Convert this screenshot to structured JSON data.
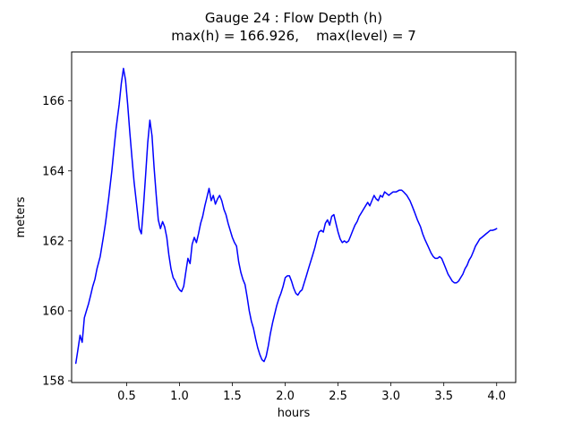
{
  "chart_data": {
    "type": "line",
    "title": "Gauge 24 : Flow Depth (h)",
    "subtitle": "max(h) = 166.926,    max(level) = 7",
    "max_h": 166.926,
    "max_level": 7,
    "xlabel": "hours",
    "ylabel": "meters",
    "xlim": [
      -0.02,
      4.18
    ],
    "ylim": [
      157.95,
      167.4
    ],
    "xticks": [
      0.5,
      1.0,
      1.5,
      2.0,
      2.5,
      3.0,
      3.5,
      4.0
    ],
    "xtick_labels": [
      "0.5",
      "1.0",
      "1.5",
      "2.0",
      "2.5",
      "3.0",
      "3.5",
      "4.0"
    ],
    "yticks": [
      158,
      160,
      162,
      164,
      166
    ],
    "ytick_labels": [
      "158",
      "160",
      "162",
      "164",
      "166"
    ],
    "grid": false,
    "legend": "none",
    "line_color": "#0000ff",
    "line_width": 1.5,
    "points": [
      [
        0.02,
        158.5
      ],
      [
        0.04,
        158.9
      ],
      [
        0.06,
        159.3
      ],
      [
        0.08,
        159.1
      ],
      [
        0.1,
        159.8
      ],
      [
        0.12,
        160.0
      ],
      [
        0.14,
        160.2
      ],
      [
        0.16,
        160.45
      ],
      [
        0.18,
        160.7
      ],
      [
        0.2,
        160.9
      ],
      [
        0.22,
        161.2
      ],
      [
        0.25,
        161.55
      ],
      [
        0.28,
        162.1
      ],
      [
        0.3,
        162.5
      ],
      [
        0.33,
        163.2
      ],
      [
        0.36,
        164.0
      ],
      [
        0.38,
        164.6
      ],
      [
        0.4,
        165.2
      ],
      [
        0.43,
        165.9
      ],
      [
        0.45,
        166.5
      ],
      [
        0.47,
        166.93
      ],
      [
        0.49,
        166.6
      ],
      [
        0.51,
        165.9
      ],
      [
        0.53,
        165.1
      ],
      [
        0.55,
        164.4
      ],
      [
        0.57,
        163.7
      ],
      [
        0.6,
        162.9
      ],
      [
        0.62,
        162.35
      ],
      [
        0.64,
        162.2
      ],
      [
        0.66,
        163.0
      ],
      [
        0.68,
        163.9
      ],
      [
        0.7,
        164.8
      ],
      [
        0.72,
        165.45
      ],
      [
        0.74,
        165.0
      ],
      [
        0.76,
        164.1
      ],
      [
        0.78,
        163.3
      ],
      [
        0.8,
        162.6
      ],
      [
        0.82,
        162.35
      ],
      [
        0.84,
        162.55
      ],
      [
        0.86,
        162.4
      ],
      [
        0.88,
        162.1
      ],
      [
        0.9,
        161.6
      ],
      [
        0.92,
        161.2
      ],
      [
        0.94,
        160.95
      ],
      [
        0.96,
        160.85
      ],
      [
        0.98,
        160.7
      ],
      [
        1.0,
        160.6
      ],
      [
        1.02,
        160.55
      ],
      [
        1.04,
        160.7
      ],
      [
        1.06,
        161.1
      ],
      [
        1.08,
        161.5
      ],
      [
        1.1,
        161.35
      ],
      [
        1.12,
        161.9
      ],
      [
        1.14,
        162.1
      ],
      [
        1.16,
        161.95
      ],
      [
        1.18,
        162.2
      ],
      [
        1.2,
        162.5
      ],
      [
        1.22,
        162.7
      ],
      [
        1.24,
        163.0
      ],
      [
        1.26,
        163.25
      ],
      [
        1.28,
        163.5
      ],
      [
        1.3,
        163.15
      ],
      [
        1.32,
        163.3
      ],
      [
        1.34,
        163.05
      ],
      [
        1.36,
        163.2
      ],
      [
        1.38,
        163.3
      ],
      [
        1.4,
        163.15
      ],
      [
        1.42,
        162.9
      ],
      [
        1.44,
        162.75
      ],
      [
        1.46,
        162.5
      ],
      [
        1.48,
        162.3
      ],
      [
        1.5,
        162.1
      ],
      [
        1.52,
        161.95
      ],
      [
        1.54,
        161.85
      ],
      [
        1.56,
        161.4
      ],
      [
        1.58,
        161.1
      ],
      [
        1.6,
        160.9
      ],
      [
        1.62,
        160.75
      ],
      [
        1.64,
        160.4
      ],
      [
        1.66,
        160.0
      ],
      [
        1.68,
        159.7
      ],
      [
        1.7,
        159.5
      ],
      [
        1.72,
        159.2
      ],
      [
        1.74,
        158.95
      ],
      [
        1.76,
        158.75
      ],
      [
        1.78,
        158.6
      ],
      [
        1.8,
        158.55
      ],
      [
        1.82,
        158.7
      ],
      [
        1.84,
        159.0
      ],
      [
        1.86,
        159.35
      ],
      [
        1.88,
        159.65
      ],
      [
        1.9,
        159.9
      ],
      [
        1.92,
        160.15
      ],
      [
        1.94,
        160.35
      ],
      [
        1.96,
        160.5
      ],
      [
        1.98,
        160.7
      ],
      [
        2.0,
        160.95
      ],
      [
        2.02,
        161.0
      ],
      [
        2.04,
        161.0
      ],
      [
        2.06,
        160.85
      ],
      [
        2.08,
        160.65
      ],
      [
        2.1,
        160.5
      ],
      [
        2.12,
        160.45
      ],
      [
        2.14,
        160.55
      ],
      [
        2.16,
        160.6
      ],
      [
        2.18,
        160.8
      ],
      [
        2.2,
        161.0
      ],
      [
        2.22,
        161.2
      ],
      [
        2.24,
        161.4
      ],
      [
        2.26,
        161.6
      ],
      [
        2.28,
        161.8
      ],
      [
        2.3,
        162.05
      ],
      [
        2.32,
        162.25
      ],
      [
        2.34,
        162.3
      ],
      [
        2.36,
        162.25
      ],
      [
        2.38,
        162.5
      ],
      [
        2.4,
        162.6
      ],
      [
        2.42,
        162.45
      ],
      [
        2.44,
        162.7
      ],
      [
        2.46,
        162.75
      ],
      [
        2.48,
        162.5
      ],
      [
        2.5,
        162.25
      ],
      [
        2.52,
        162.05
      ],
      [
        2.54,
        161.95
      ],
      [
        2.56,
        162.0
      ],
      [
        2.58,
        161.95
      ],
      [
        2.6,
        162.0
      ],
      [
        2.62,
        162.15
      ],
      [
        2.64,
        162.3
      ],
      [
        2.66,
        162.45
      ],
      [
        2.68,
        162.55
      ],
      [
        2.7,
        162.7
      ],
      [
        2.72,
        162.8
      ],
      [
        2.74,
        162.9
      ],
      [
        2.76,
        163.0
      ],
      [
        2.78,
        163.1
      ],
      [
        2.8,
        163.0
      ],
      [
        2.82,
        163.15
      ],
      [
        2.84,
        163.3
      ],
      [
        2.86,
        163.2
      ],
      [
        2.88,
        163.15
      ],
      [
        2.9,
        163.3
      ],
      [
        2.92,
        163.25
      ],
      [
        2.94,
        163.4
      ],
      [
        2.96,
        163.35
      ],
      [
        2.98,
        163.3
      ],
      [
        3.0,
        163.35
      ],
      [
        3.02,
        163.4
      ],
      [
        3.05,
        163.4
      ],
      [
        3.08,
        163.45
      ],
      [
        3.1,
        163.45
      ],
      [
        3.12,
        163.4
      ],
      [
        3.15,
        163.3
      ],
      [
        3.18,
        163.15
      ],
      [
        3.2,
        163.0
      ],
      [
        3.22,
        162.85
      ],
      [
        3.25,
        162.6
      ],
      [
        3.28,
        162.4
      ],
      [
        3.3,
        162.2
      ],
      [
        3.32,
        162.05
      ],
      [
        3.35,
        161.85
      ],
      [
        3.38,
        161.65
      ],
      [
        3.4,
        161.55
      ],
      [
        3.42,
        161.5
      ],
      [
        3.44,
        161.5
      ],
      [
        3.46,
        161.55
      ],
      [
        3.48,
        161.5
      ],
      [
        3.5,
        161.35
      ],
      [
        3.52,
        161.2
      ],
      [
        3.54,
        161.05
      ],
      [
        3.56,
        160.95
      ],
      [
        3.58,
        160.85
      ],
      [
        3.6,
        160.8
      ],
      [
        3.62,
        160.8
      ],
      [
        3.64,
        160.85
      ],
      [
        3.66,
        160.95
      ],
      [
        3.68,
        161.05
      ],
      [
        3.7,
        161.2
      ],
      [
        3.72,
        161.3
      ],
      [
        3.74,
        161.45
      ],
      [
        3.76,
        161.55
      ],
      [
        3.78,
        161.7
      ],
      [
        3.8,
        161.85
      ],
      [
        3.82,
        161.95
      ],
      [
        3.84,
        162.05
      ],
      [
        3.86,
        162.1
      ],
      [
        3.88,
        162.15
      ],
      [
        3.9,
        162.2
      ],
      [
        3.92,
        162.25
      ],
      [
        3.94,
        162.3
      ],
      [
        3.96,
        162.3
      ],
      [
        3.98,
        162.32
      ],
      [
        4.0,
        162.35
      ]
    ]
  }
}
